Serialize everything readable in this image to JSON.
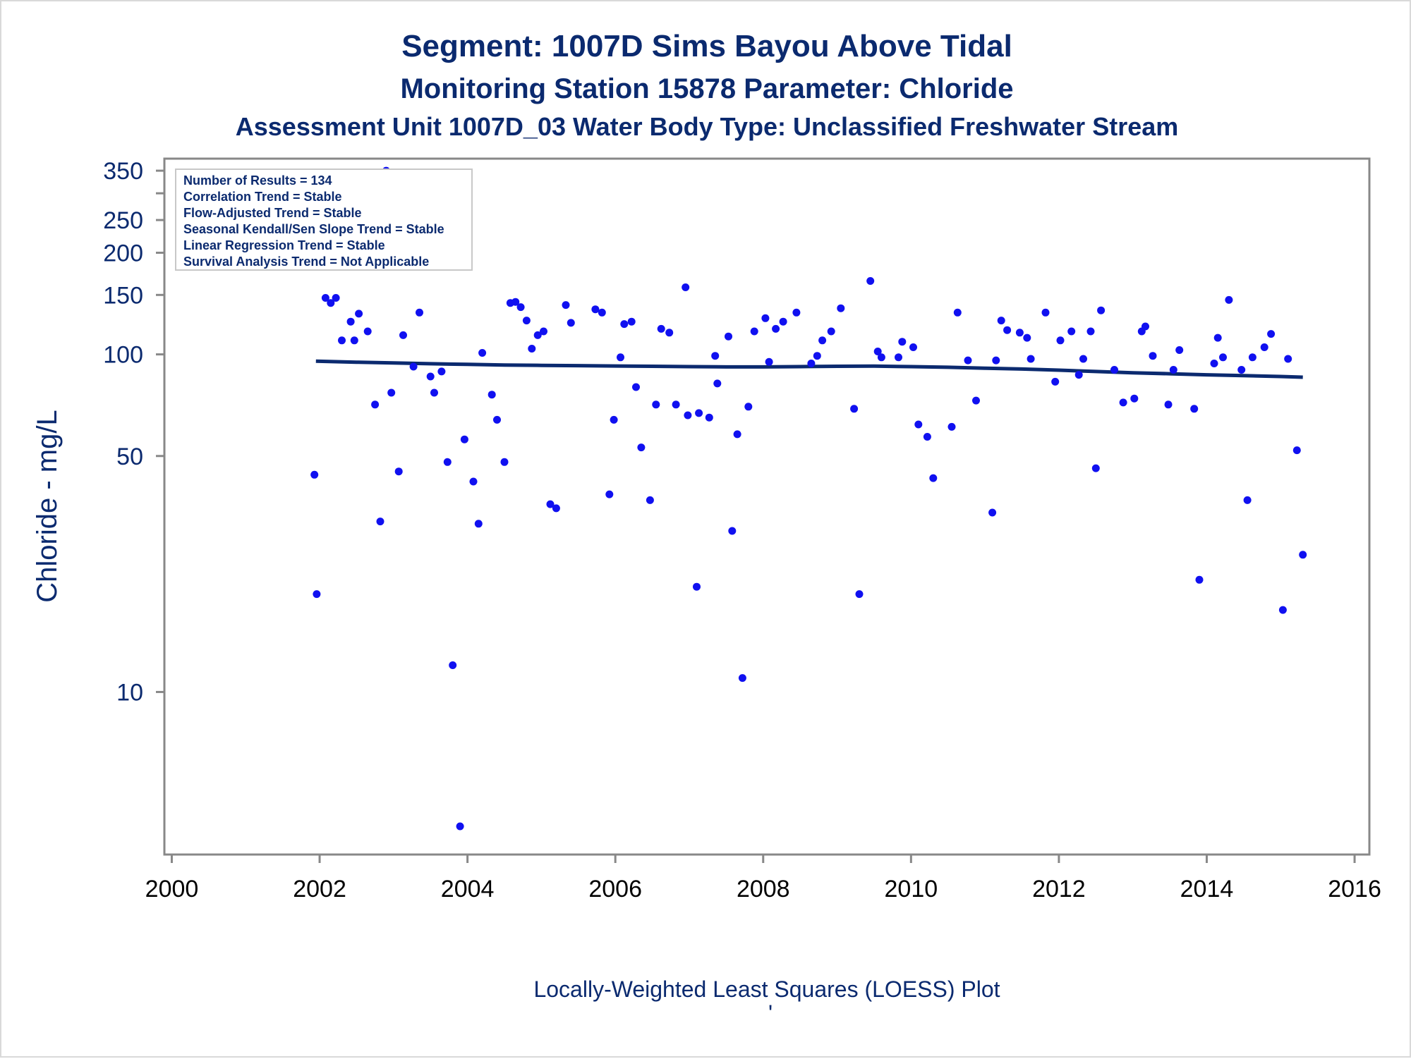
{
  "titles": {
    "line1": "Segment: 1007D  Sims Bayou Above Tidal",
    "line2": "Monitoring Station 15878 Parameter: Chloride",
    "line3": "Assessment Unit 1007D_03   Water Body Type: Unclassified Freshwater Stream"
  },
  "inset": {
    "lines": [
      "Number of Results = 134",
      "Correlation Trend = Stable",
      "Flow-Adjusted Trend = Stable",
      "Seasonal Kendall/Sen Slope Trend = Stable",
      "Linear Regression Trend = Stable",
      "Survival Analysis Trend = Not Applicable"
    ]
  },
  "footnote": "Locally-Weighted Least Squares (LOESS) Plot",
  "footnote_mark": "'",
  "colors": {
    "points": "#1010f0",
    "loess": "#0b2a6f",
    "text": "#0b2a6f",
    "axis": "#888888"
  },
  "chart_data": {
    "type": "scatter",
    "title": "Segment: 1007D  Sims Bayou Above Tidal",
    "subtitle": "Monitoring Station 15878 Parameter: Chloride",
    "xlabel": "",
    "ylabel": "Chloride - mg/L",
    "xlim": [
      1999.9,
      2016.2
    ],
    "ylim": [
      3.3,
      380
    ],
    "yscale": "log",
    "xticks": [
      "2000",
      "2002",
      "2004",
      "2006",
      "2008",
      "2010",
      "2012",
      "2014",
      "2016"
    ],
    "yticks": [
      "10",
      "50",
      "100",
      "150",
      "200",
      "250",
      "350"
    ],
    "grid": false,
    "points": [
      [
        2001.93,
        44
      ],
      [
        2001.96,
        19.5
      ],
      [
        2002.08,
        147
      ],
      [
        2002.15,
        142
      ],
      [
        2002.22,
        147
      ],
      [
        2002.3,
        110
      ],
      [
        2002.42,
        125
      ],
      [
        2002.47,
        110
      ],
      [
        2002.53,
        132
      ],
      [
        2002.65,
        117
      ],
      [
        2002.75,
        71
      ],
      [
        2002.82,
        32
      ],
      [
        2002.9,
        350
      ],
      [
        2002.97,
        77
      ],
      [
        2003.07,
        45
      ],
      [
        2003.13,
        114
      ],
      [
        2003.27,
        92
      ],
      [
        2003.35,
        133
      ],
      [
        2003.5,
        86
      ],
      [
        2003.55,
        77
      ],
      [
        2003.65,
        89
      ],
      [
        2003.73,
        48
      ],
      [
        2003.8,
        12
      ],
      [
        2003.9,
        4.0
      ],
      [
        2003.96,
        56
      ],
      [
        2004.08,
        42
      ],
      [
        2004.15,
        31.5
      ],
      [
        2004.2,
        101
      ],
      [
        2004.33,
        76
      ],
      [
        2004.4,
        64
      ],
      [
        2004.5,
        48
      ],
      [
        2004.58,
        142
      ],
      [
        2004.65,
        143
      ],
      [
        2004.72,
        138
      ],
      [
        2004.8,
        126
      ],
      [
        2004.87,
        104
      ],
      [
        2004.95,
        114
      ],
      [
        2005.03,
        117
      ],
      [
        2005.12,
        36
      ],
      [
        2005.2,
        35
      ],
      [
        2005.33,
        140
      ],
      [
        2005.4,
        124
      ],
      [
        2005.73,
        136
      ],
      [
        2005.82,
        133
      ],
      [
        2005.92,
        38.5
      ],
      [
        2005.98,
        64
      ],
      [
        2006.07,
        98
      ],
      [
        2006.12,
        123
      ],
      [
        2006.22,
        125
      ],
      [
        2006.28,
        80
      ],
      [
        2006.35,
        53
      ],
      [
        2006.47,
        37
      ],
      [
        2006.55,
        71
      ],
      [
        2006.62,
        119
      ],
      [
        2006.73,
        116
      ],
      [
        2006.82,
        71
      ],
      [
        2006.95,
        158
      ],
      [
        2006.98,
        66
      ],
      [
        2007.1,
        20.5
      ],
      [
        2007.13,
        67
      ],
      [
        2007.27,
        65
      ],
      [
        2007.35,
        99
      ],
      [
        2007.38,
        82
      ],
      [
        2007.53,
        113
      ],
      [
        2007.58,
        30
      ],
      [
        2007.65,
        58
      ],
      [
        2007.72,
        11
      ],
      [
        2007.8,
        70
      ],
      [
        2007.88,
        117
      ],
      [
        2008.03,
        128
      ],
      [
        2008.08,
        95
      ],
      [
        2008.17,
        119
      ],
      [
        2008.27,
        125
      ],
      [
        2008.45,
        133
      ],
      [
        2008.65,
        94
      ],
      [
        2008.73,
        99
      ],
      [
        2008.8,
        110
      ],
      [
        2008.92,
        117
      ],
      [
        2009.05,
        137
      ],
      [
        2009.23,
        69
      ],
      [
        2009.3,
        19.5
      ],
      [
        2009.45,
        165
      ],
      [
        2009.55,
        102
      ],
      [
        2009.6,
        98
      ],
      [
        2009.83,
        98
      ],
      [
        2009.88,
        109
      ],
      [
        2010.03,
        105
      ],
      [
        2010.1,
        62
      ],
      [
        2010.22,
        57
      ],
      [
        2010.3,
        43
      ],
      [
        2010.55,
        61
      ],
      [
        2010.63,
        133
      ],
      [
        2010.77,
        96
      ],
      [
        2010.88,
        73
      ],
      [
        2011.1,
        34
      ],
      [
        2011.15,
        96
      ],
      [
        2011.22,
        126
      ],
      [
        2011.3,
        118
      ],
      [
        2011.47,
        116
      ],
      [
        2011.57,
        112
      ],
      [
        2011.62,
        97
      ],
      [
        2011.82,
        133
      ],
      [
        2011.95,
        83
      ],
      [
        2012.02,
        110
      ],
      [
        2012.17,
        117
      ],
      [
        2012.27,
        87
      ],
      [
        2012.33,
        97
      ],
      [
        2012.43,
        117
      ],
      [
        2012.5,
        46
      ],
      [
        2012.57,
        135
      ],
      [
        2012.75,
        90
      ],
      [
        2012.87,
        72
      ],
      [
        2013.02,
        74
      ],
      [
        2013.12,
        117
      ],
      [
        2013.17,
        121
      ],
      [
        2013.27,
        99
      ],
      [
        2013.48,
        71
      ],
      [
        2013.55,
        90
      ],
      [
        2013.63,
        103
      ],
      [
        2013.83,
        69
      ],
      [
        2013.9,
        21.5
      ],
      [
        2014.1,
        94
      ],
      [
        2014.15,
        112
      ],
      [
        2014.22,
        98
      ],
      [
        2014.3,
        145
      ],
      [
        2014.47,
        90
      ],
      [
        2014.55,
        37
      ],
      [
        2014.62,
        98
      ],
      [
        2014.78,
        105
      ],
      [
        2014.87,
        115
      ],
      [
        2015.03,
        17.5
      ],
      [
        2015.1,
        97
      ],
      [
        2015.22,
        52
      ],
      [
        2015.3,
        25.5
      ]
    ],
    "loess": [
      [
        2001.95,
        95.5
      ],
      [
        2002.5,
        94.8
      ],
      [
        2003.0,
        94.3
      ],
      [
        2003.5,
        93.8
      ],
      [
        2004.0,
        93.4
      ],
      [
        2004.5,
        93.0
      ],
      [
        2005.0,
        92.8
      ],
      [
        2005.5,
        92.6
      ],
      [
        2006.0,
        92.4
      ],
      [
        2006.5,
        92.2
      ],
      [
        2007.0,
        92.0
      ],
      [
        2007.5,
        91.8
      ],
      [
        2008.0,
        91.8
      ],
      [
        2008.5,
        92.0
      ],
      [
        2009.0,
        92.2
      ],
      [
        2009.5,
        92.3
      ],
      [
        2010.0,
        92.0
      ],
      [
        2010.5,
        91.6
      ],
      [
        2011.0,
        91.0
      ],
      [
        2011.5,
        90.5
      ],
      [
        2012.0,
        89.8
      ],
      [
        2012.5,
        89.0
      ],
      [
        2013.0,
        88.2
      ],
      [
        2013.5,
        87.6
      ],
      [
        2014.0,
        87.0
      ],
      [
        2014.5,
        86.5
      ],
      [
        2015.0,
        86.0
      ],
      [
        2015.3,
        85.6
      ]
    ]
  }
}
